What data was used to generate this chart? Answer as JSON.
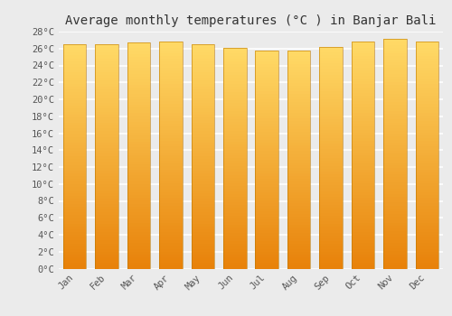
{
  "title": "Average monthly temperatures (°C ) in Banjar Bali",
  "months": [
    "Jan",
    "Feb",
    "Mar",
    "Apr",
    "May",
    "Jun",
    "Jul",
    "Aug",
    "Sep",
    "Oct",
    "Nov",
    "Dec"
  ],
  "values": [
    26.5,
    26.5,
    26.7,
    26.8,
    26.5,
    26.1,
    25.8,
    25.8,
    26.2,
    26.8,
    27.1,
    26.8
  ],
  "ylim": [
    0,
    28
  ],
  "yticks": [
    0,
    2,
    4,
    6,
    8,
    10,
    12,
    14,
    16,
    18,
    20,
    22,
    24,
    26,
    28
  ],
  "bar_color_bottom": "#E8820A",
  "bar_color_top": "#FFD966",
  "background_color": "#ebebeb",
  "grid_color": "#ffffff",
  "title_fontsize": 10,
  "tick_fontsize": 7.5,
  "bar_edge_color": "#BB7700"
}
